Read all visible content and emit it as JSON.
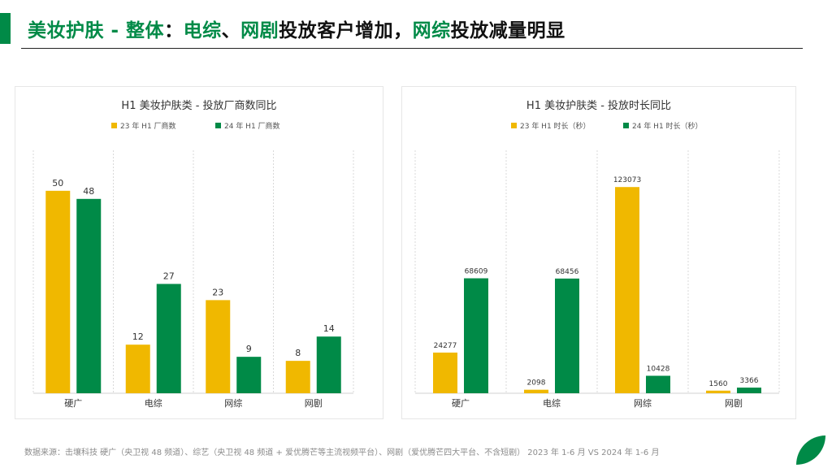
{
  "header": {
    "part1": "美妆护肤 - 整体",
    "colon": "：",
    "part2": "电综",
    "sep": "、",
    "part3": "网剧",
    "part4": "投放客户增加，",
    "part5": "网综",
    "part6": "投放减量明显"
  },
  "footer": "数据来源：击壤科技 硬广（央卫视 48 频道）、综艺（央卫视 48 频道 + 爱优腾芒等主流视频平台）、网剧（爱优腾芒四大平台、不含短剧） 2023 年 1-6 月  VS 2024 年 1-6 月",
  "colors": {
    "accent": "#008a47",
    "series_2023": "#f0b800",
    "series_2024": "#008a47"
  },
  "chart_data": [
    {
      "type": "bar",
      "title": "H1 美妆护肤类 - 投放厂商数同比",
      "categories": [
        "硬广",
        "电综",
        "网综",
        "网剧"
      ],
      "series": [
        {
          "name": "23 年 H1 厂商数",
          "values": [
            50,
            12,
            23,
            8
          ]
        },
        {
          "name": "24 年 H1 厂商数",
          "values": [
            48,
            27,
            9,
            14
          ]
        }
      ],
      "ylim": [
        0,
        60
      ],
      "grid": true,
      "legend": "top"
    },
    {
      "type": "bar",
      "title": "H1 美妆护肤类 - 投放时长同比",
      "categories": [
        "硬广",
        "电综",
        "网综",
        "网剧"
      ],
      "series": [
        {
          "name": "23 年 H1 时长（秒）",
          "values": [
            24277,
            2098,
            123073,
            1560
          ]
        },
        {
          "name": "24 年 H1 时长（秒）",
          "values": [
            68609,
            68456,
            10428,
            3366
          ]
        }
      ],
      "ylim": [
        0,
        145000
      ],
      "grid": true,
      "legend": "top"
    }
  ]
}
